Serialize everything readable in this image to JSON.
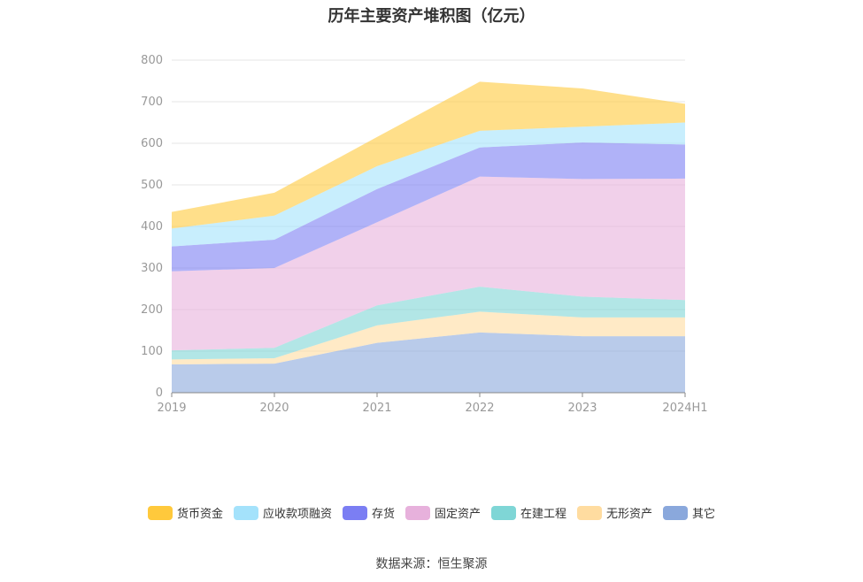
{
  "title": "历年主要资产堆积图（亿元）",
  "source": "数据来源：恒生聚源",
  "colors": {
    "货币资金": "#ffc93c",
    "应收款项融资": "#a4e2fb",
    "存货": "#7b7ef3",
    "固定资产": "#e7b1dc",
    "在建工程": "#7fd6d6",
    "无形资产": "#ffdca0",
    "其它": "#8aa8dc"
  },
  "chart_data": {
    "type": "area",
    "stacked": true,
    "title": "历年主要资产堆积图（亿元）",
    "categories": [
      "2019",
      "2020",
      "2021",
      "2022",
      "2023",
      "2024H1"
    ],
    "ylim": [
      0,
      800
    ],
    "yticks": [
      0,
      100,
      200,
      300,
      400,
      500,
      600,
      700,
      800
    ],
    "grid": true,
    "legend_position": "bottom",
    "series": [
      {
        "name": "其它",
        "values": [
          68,
          70,
          120,
          145,
          136,
          136
        ]
      },
      {
        "name": "无形资产",
        "values": [
          12,
          13,
          42,
          50,
          45,
          45
        ]
      },
      {
        "name": "在建工程",
        "values": [
          22,
          25,
          48,
          60,
          50,
          42
        ]
      },
      {
        "name": "固定资产",
        "values": [
          190,
          192,
          200,
          265,
          283,
          292
        ]
      },
      {
        "name": "存货",
        "values": [
          60,
          68,
          80,
          70,
          88,
          82
        ]
      },
      {
        "name": "应收款项融资",
        "values": [
          43,
          58,
          55,
          40,
          38,
          53
        ]
      },
      {
        "name": "货币资金",
        "values": [
          40,
          55,
          70,
          118,
          92,
          45
        ]
      }
    ]
  }
}
